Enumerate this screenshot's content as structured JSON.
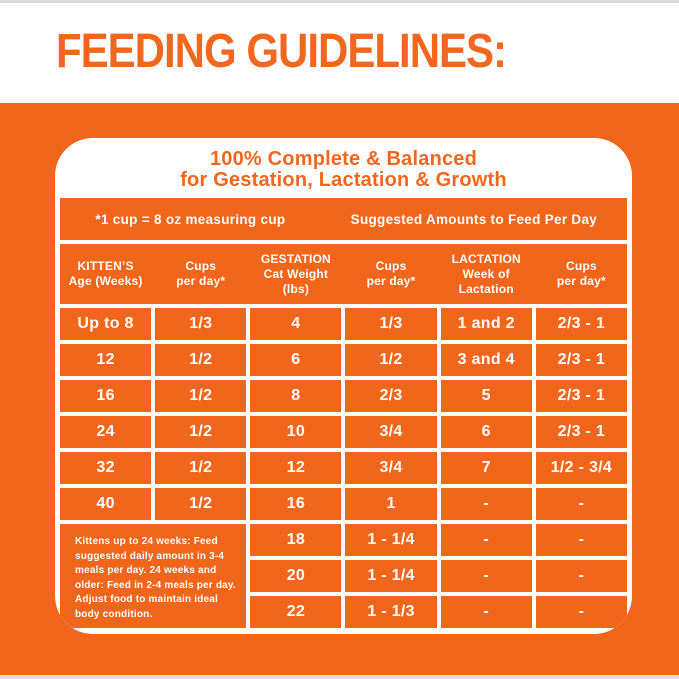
{
  "page": {
    "heading": "FEEDING GUIDELINES:",
    "colors": {
      "brand_orange": "#f2661c",
      "text_on_orange": "#ffffff",
      "heading_orange": "#f2671e",
      "card_background": "#ffffff",
      "edge_gray": "#dedede"
    }
  },
  "card": {
    "title_line1": "100% Complete & Balanced",
    "title_line2": "for Gestation, Lactation & Growth",
    "band": {
      "left": "*1 cup = 8 oz measuring cup",
      "right": "Suggested Amounts to Feed Per Day"
    },
    "columns": [
      {
        "lines": [
          "KITTEN’S",
          "Age (Weeks)"
        ]
      },
      {
        "lines": [
          "Cups",
          "per day*"
        ]
      },
      {
        "lines": [
          "GESTATION",
          "Cat Weight (lbs)"
        ]
      },
      {
        "lines": [
          "Cups",
          "per day*"
        ]
      },
      {
        "lines": [
          "LACTATION",
          "Week of",
          "Lactation"
        ]
      },
      {
        "lines": [
          "Cups",
          "per day*"
        ]
      }
    ],
    "rows": [
      [
        "Up to 8",
        "1/3",
        "4",
        "1/3",
        "1 and 2",
        "2/3 - 1"
      ],
      [
        "12",
        "1/2",
        "6",
        "1/2",
        "3 and 4",
        "2/3 - 1"
      ],
      [
        "16",
        "1/2",
        "8",
        "2/3",
        "5",
        "2/3 - 1"
      ],
      [
        "24",
        "1/2",
        "10",
        "3/4",
        "6",
        "2/3 - 1"
      ],
      [
        "32",
        "1/2",
        "12",
        "3/4",
        "7",
        "1/2 - 3/4"
      ],
      [
        "40",
        "1/2",
        "16",
        "1",
        "-",
        "-"
      ]
    ],
    "note": "Kittens up to 24 weeks: Feed suggested daily amount in 3-4 meals per day. 24 weeks and older: Feed in 2-4 meals per day. Adjust food to maintain ideal body condition.",
    "bottom_rows": [
      [
        "18",
        "1 - 1/4",
        "-",
        "-"
      ],
      [
        "20",
        "1 - 1/4",
        "-",
        "-"
      ],
      [
        "22",
        "1 - 1/3",
        "-",
        "-"
      ]
    ]
  }
}
